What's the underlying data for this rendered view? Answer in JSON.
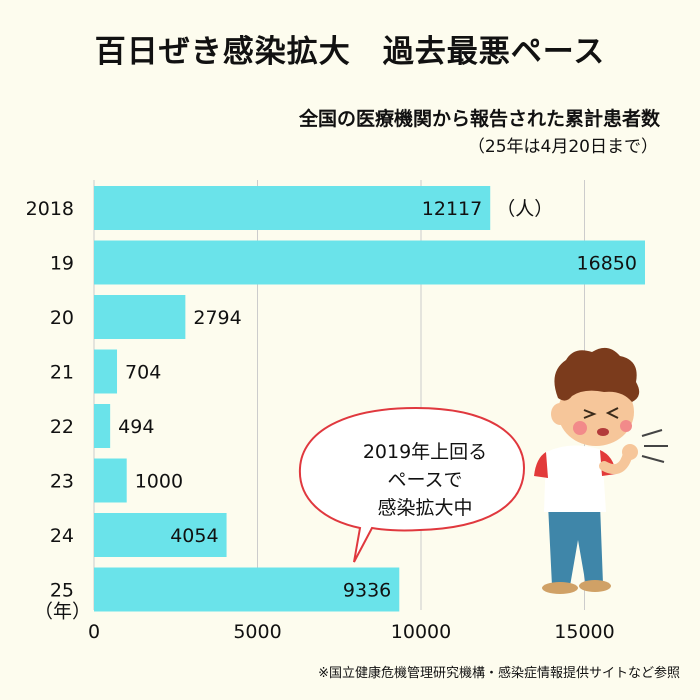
{
  "title": "百日ぜき感染拡大　過去最悪ペース",
  "chart_data": {
    "type": "bar",
    "orientation": "horizontal",
    "title": "全国の医療機関から報告された累計患者数",
    "note": "（25年は4月20日まで）",
    "unit_label": "（人）",
    "year_unit_label": "（年）",
    "categories": [
      "2018",
      "19",
      "20",
      "21",
      "22",
      "23",
      "24",
      "25"
    ],
    "values": [
      12117,
      16850,
      2794,
      704,
      494,
      1000,
      4054,
      9336
    ],
    "x_ticks": [
      0,
      5000,
      10000,
      15000
    ],
    "xlim": [
      0,
      17000
    ],
    "grid": true,
    "bar_color": "#6ae3ea"
  },
  "callout": {
    "lines": [
      "2019年上回る",
      "ペースで",
      "感染拡大中"
    ],
    "border_color": "#e0383e"
  },
  "illustration": "coughing-boy",
  "source": "※国立健康危機管理研究機構・感染症情報提供サイトなど参照"
}
